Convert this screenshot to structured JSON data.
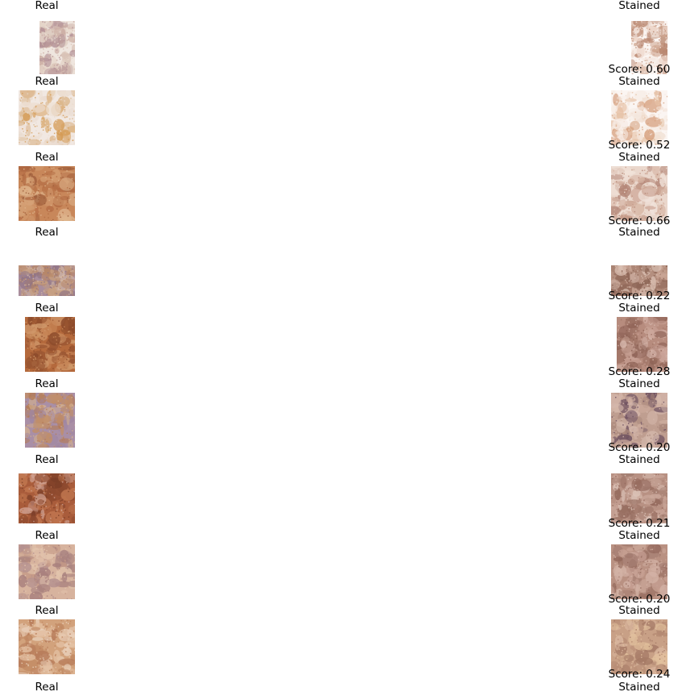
{
  "rows": [
    {
      "real_label": "Real",
      "stained_label": "Stained",
      "score_text": "Score: 0.60",
      "real_colors": [
        "#efe6df",
        "#d9c3b6",
        "#c9a9a0",
        "#b18f95",
        "#e7d8cc"
      ],
      "stained_colors": [
        "#fbf5f2",
        "#ecd3c6",
        "#cfa690",
        "#b8866f",
        "#f4e7e0"
      ]
    },
    {
      "real_label": "Real",
      "stained_label": "Stained",
      "score_text": "Score: 0.52",
      "real_colors": [
        "#f1e8e2",
        "#e8d9cd",
        "#dcb88f",
        "#d49a52",
        "#eddfd3"
      ],
      "stained_colors": [
        "#fbf5f2",
        "#f1dfd2",
        "#e6c2a6",
        "#d6a17f",
        "#f7ece5"
      ]
    },
    {
      "real_label": "Real",
      "stained_label": "Stained",
      "score_text": "Score: 0.66",
      "real_colors": [
        "#c8875a",
        "#b36b43",
        "#d29b6f",
        "#9c5c3a",
        "#deb48c"
      ],
      "stained_colors": [
        "#ead7cc",
        "#d7b5a4",
        "#c49886",
        "#b38576",
        "#f1e3da"
      ]
    },
    {
      "real_label": "Real",
      "stained_label": "Stained",
      "score_text": "Score: 0.22",
      "real_colors": [
        "#a98d9c",
        "#8f7385",
        "#c59d7f",
        "#b78768",
        "#d5b9a7"
      ],
      "stained_colors": [
        "#b48f7f",
        "#9e7565",
        "#c9a595",
        "#8a6253",
        "#d9bfb2"
      ]
    },
    {
      "real_label": "Real",
      "stained_label": "Stained",
      "score_text": "Score: 0.28",
      "real_colors": [
        "#b4693c",
        "#9a5632",
        "#c78456",
        "#8b4a2b",
        "#d09a6c"
      ],
      "stained_colors": [
        "#b78c7e",
        "#a07567",
        "#c9a296",
        "#8e6356",
        "#d6b6ab"
      ]
    },
    {
      "real_label": "Real",
      "stained_label": "Stained",
      "score_text": "Score: 0.20",
      "real_colors": [
        "#a98fa6",
        "#c08e6a",
        "#b47b55",
        "#9f86a2",
        "#d3b08f"
      ],
      "stained_colors": [
        "#bf9e90",
        "#a8867a",
        "#d5b8ac",
        "#6d5060",
        "#cfae9f"
      ]
    },
    {
      "real_label": "Real",
      "stained_label": "Stained",
      "score_text": "Score: 0.21",
      "real_colors": [
        "#a95c3b",
        "#8e4a2f",
        "#c0764f",
        "#7b3e27",
        "#cfa090"
      ],
      "stained_colors": [
        "#b89183",
        "#a27c6f",
        "#cba89b",
        "#93695c",
        "#dcc3b8"
      ]
    },
    {
      "real_label": "Real",
      "stained_label": "Stained",
      "score_text": "Score: 0.20",
      "real_colors": [
        "#d7b39e",
        "#c59a86",
        "#b4908f",
        "#e2c4ad",
        "#a77f7d"
      ],
      "stained_colors": [
        "#b99182",
        "#a57e72",
        "#c9a396",
        "#94695c",
        "#d4b4a7"
      ]
    },
    {
      "real_label": "Real",
      "stained_label": "Stained",
      "score_text": "Score: 0.24",
      "real_colors": [
        "#d2a27c",
        "#c08862",
        "#e4c0a2",
        "#b67a59",
        "#ead2bd"
      ],
      "stained_colors": [
        "#c8a086",
        "#b58a73",
        "#e2c19d",
        "#a57a66",
        "#d9b69e"
      ]
    }
  ]
}
